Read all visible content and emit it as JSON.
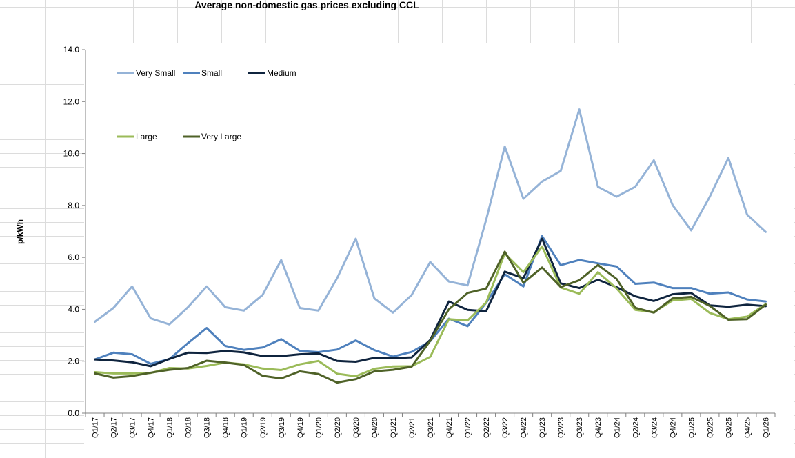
{
  "chart_data": {
    "type": "line",
    "title": "Average non-domestic gas prices excluding CCL",
    "xlabel": "",
    "ylabel": "p/kWh",
    "ylim": [
      0,
      14
    ],
    "yticks": [
      "0.0",
      "2.0",
      "4.0",
      "6.0",
      "8.0",
      "10.0",
      "12.0",
      "14.0"
    ],
    "grid": false,
    "legend_position": "top-left",
    "categories": [
      "Q1/17",
      "Q2/17",
      "Q3/17",
      "Q4/17",
      "Q1/18",
      "Q2/18",
      "Q3/18",
      "Q4/18",
      "Q1/19",
      "Q2/19",
      "Q3/19",
      "Q4/19",
      "Q1/20",
      "Q2/20",
      "Q3/20",
      "Q4/20",
      "Q1/21",
      "Q2/21",
      "Q3/21",
      "Q4/21",
      "Q1/22",
      "Q2/22",
      "Q3/22",
      "Q4/22",
      "Q1/23",
      "Q2/23",
      "Q3/23",
      "Q4/23",
      "Q1/24",
      "Q2/24",
      "Q3/24",
      "Q4/24",
      "Q1/25",
      "Q2/25",
      "Q3/25",
      "Q4/25",
      "Q1/26"
    ],
    "series": [
      {
        "name": "Very Small",
        "color": "#95b3d7",
        "values": [
          3.52,
          4.05,
          4.88,
          3.65,
          3.42,
          4.08,
          4.88,
          4.08,
          3.95,
          4.55,
          5.9,
          4.05,
          3.95,
          5.2,
          6.72,
          4.42,
          3.87,
          4.55,
          5.82,
          5.07,
          4.92,
          7.45,
          10.27,
          8.26,
          8.92,
          9.33,
          11.7,
          8.72,
          8.34,
          8.72,
          9.74,
          8.02,
          7.04,
          8.34,
          9.83,
          7.65,
          6.98
        ]
      },
      {
        "name": "Small",
        "color": "#4f81bd",
        "values": [
          2.07,
          2.33,
          2.27,
          1.9,
          2.08,
          2.7,
          3.28,
          2.59,
          2.44,
          2.53,
          2.85,
          2.4,
          2.35,
          2.45,
          2.8,
          2.43,
          2.18,
          2.36,
          2.77,
          3.64,
          3.35,
          4.25,
          5.35,
          4.88,
          6.82,
          5.7,
          5.9,
          5.77,
          5.65,
          4.98,
          5.03,
          4.82,
          4.82,
          4.6,
          4.65,
          4.38,
          4.3
        ]
      },
      {
        "name": "Medium",
        "color": "#0f243e",
        "values": [
          2.07,
          2.03,
          1.96,
          1.81,
          2.09,
          2.33,
          2.32,
          2.4,
          2.34,
          2.2,
          2.2,
          2.27,
          2.3,
          2.01,
          1.98,
          2.13,
          2.12,
          2.15,
          2.82,
          4.3,
          3.98,
          3.93,
          5.45,
          5.2,
          6.72,
          5.0,
          4.82,
          5.14,
          4.85,
          4.5,
          4.32,
          4.58,
          4.63,
          4.15,
          4.1,
          4.18,
          4.12
        ]
      },
      {
        "name": "Large",
        "color": "#9bbb59",
        "values": [
          1.58,
          1.53,
          1.53,
          1.55,
          1.74,
          1.72,
          1.82,
          1.95,
          1.88,
          1.72,
          1.66,
          1.88,
          2.01,
          1.52,
          1.42,
          1.71,
          1.8,
          1.81,
          2.17,
          3.62,
          3.57,
          4.26,
          6.15,
          5.43,
          6.42,
          4.84,
          4.6,
          5.43,
          4.8,
          3.98,
          3.89,
          4.34,
          4.4,
          3.86,
          3.62,
          3.72,
          4.2
        ]
      },
      {
        "name": "Very Large",
        "color": "#4f6228",
        "values": [
          1.53,
          1.37,
          1.43,
          1.56,
          1.67,
          1.74,
          2.02,
          1.95,
          1.86,
          1.44,
          1.34,
          1.61,
          1.51,
          1.18,
          1.31,
          1.61,
          1.67,
          1.79,
          2.79,
          4.0,
          4.63,
          4.8,
          6.22,
          5.02,
          5.61,
          4.86,
          5.12,
          5.71,
          5.17,
          4.06,
          3.87,
          4.42,
          4.48,
          4.13,
          3.6,
          3.62,
          4.18
        ]
      }
    ]
  }
}
